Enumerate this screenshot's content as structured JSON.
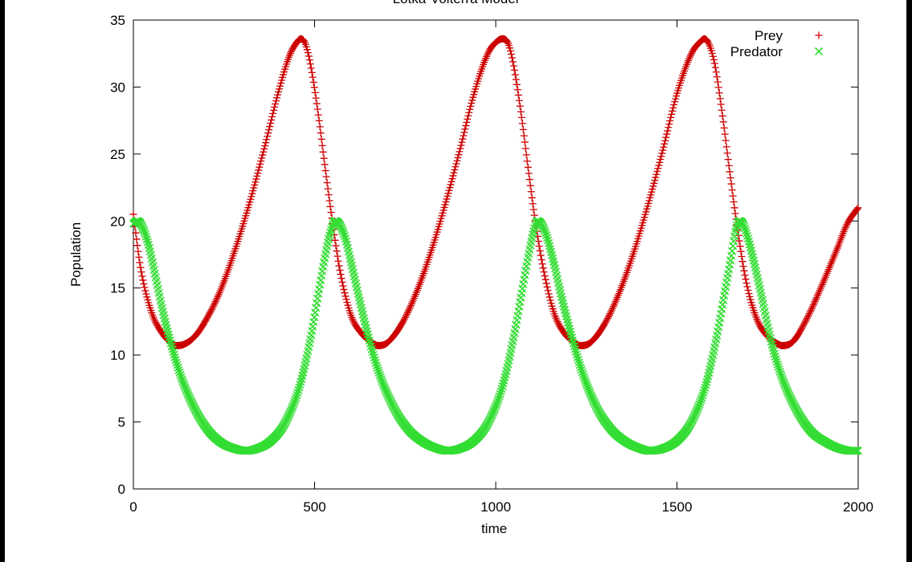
{
  "chart_data": {
    "type": "scatter",
    "title": "Lotka-Volterra Model",
    "xlabel": "time",
    "ylabel": "Population",
    "xlim": [
      0,
      2000
    ],
    "ylim": [
      0,
      35
    ],
    "x_ticks": [
      "0",
      "500",
      "1000",
      "1500",
      "2000"
    ],
    "y_ticks": [
      "0",
      "5",
      "10",
      "15",
      "20",
      "25",
      "30",
      "35"
    ],
    "grid": false,
    "legend_position": "top-right",
    "period": 557,
    "series": [
      {
        "name": "Prey",
        "marker": "+",
        "color": "#cc0000",
        "x": [
          0,
          20,
          50,
          80,
          100,
          118,
          140,
          170,
          200,
          240,
          280,
          320,
          360,
          400,
          430,
          450,
          462,
          475,
          490,
          510,
          530,
          550,
          570,
          600,
          630,
          660,
          675,
          700,
          740,
          780,
          820,
          860,
          900,
          940,
          980,
          1008,
          1020,
          1035,
          1050,
          1070,
          1090,
          1110,
          1130,
          1160,
          1190,
          1220,
          1232,
          1260,
          1300,
          1340,
          1380,
          1420,
          1460,
          1500,
          1540,
          1565,
          1576,
          1590,
          1605,
          1625,
          1645,
          1665,
          1690,
          1720,
          1750,
          1780,
          1790,
          1820,
          1860,
          1900,
          1940,
          1970,
          2000
        ],
        "y": [
          20.5,
          16.5,
          13.2,
          11.6,
          11.0,
          10.7,
          10.8,
          11.4,
          12.6,
          14.8,
          17.8,
          21.3,
          25.3,
          29.6,
          32.3,
          33.3,
          33.6,
          33.2,
          31.5,
          28.0,
          23.8,
          19.8,
          16.3,
          13.0,
          11.6,
          10.9,
          10.7,
          10.9,
          12.3,
          14.6,
          17.6,
          21.2,
          25.2,
          29.5,
          32.6,
          33.5,
          33.6,
          33.2,
          31.5,
          28.0,
          23.8,
          19.8,
          16.6,
          13.2,
          11.6,
          10.9,
          10.7,
          10.9,
          12.3,
          14.6,
          17.6,
          21.2,
          25.2,
          29.5,
          32.5,
          33.4,
          33.6,
          33.1,
          31.6,
          28.0,
          23.8,
          19.8,
          15.6,
          12.7,
          11.4,
          10.8,
          10.7,
          11.0,
          12.8,
          15.2,
          17.8,
          19.8,
          21.0
        ]
      },
      {
        "name": "Predator",
        "marker": "×",
        "color": "#33dd33",
        "x": [
          0,
          10,
          20,
          40,
          60,
          80,
          100,
          130,
          160,
          200,
          240,
          280,
          310,
          340,
          380,
          420,
          460,
          490,
          510,
          530,
          545,
          557,
          570,
          585,
          600,
          620,
          650,
          680,
          720,
          760,
          800,
          840,
          867,
          900,
          940,
          980,
          1020,
          1050,
          1070,
          1090,
          1105,
          1114,
          1125,
          1140,
          1160,
          1180,
          1210,
          1240,
          1280,
          1320,
          1360,
          1400,
          1424,
          1460,
          1500,
          1540,
          1580,
          1610,
          1630,
          1650,
          1662,
          1671,
          1682,
          1695,
          1712,
          1735,
          1760,
          1790,
          1830,
          1870,
          1910,
          1950,
          1981,
          2000
        ],
        "y": [
          19.8,
          20.0,
          19.8,
          18.4,
          16.0,
          13.4,
          11.2,
          8.5,
          6.5,
          4.6,
          3.5,
          3.0,
          2.85,
          3.0,
          3.6,
          5.0,
          7.8,
          11.4,
          14.5,
          17.5,
          19.3,
          20.0,
          19.7,
          18.7,
          17.0,
          14.6,
          11.2,
          8.5,
          6.0,
          4.4,
          3.5,
          3.0,
          2.85,
          3.0,
          3.6,
          5.0,
          7.8,
          11.4,
          14.4,
          17.4,
          19.3,
          20.0,
          19.8,
          18.9,
          16.9,
          14.5,
          11.3,
          8.6,
          6.0,
          4.4,
          3.5,
          3.0,
          2.85,
          3.0,
          3.6,
          5.0,
          7.8,
          11.4,
          14.4,
          17.4,
          19.3,
          20.0,
          19.8,
          18.8,
          17.0,
          14.2,
          11.0,
          8.3,
          5.9,
          4.3,
          3.5,
          3.0,
          2.85,
          2.85
        ]
      }
    ]
  },
  "colors": {
    "prey": "#cc0000",
    "predator": "#33dd33",
    "axis": "#000000",
    "background": "#ffffff",
    "frame": "#000000"
  }
}
